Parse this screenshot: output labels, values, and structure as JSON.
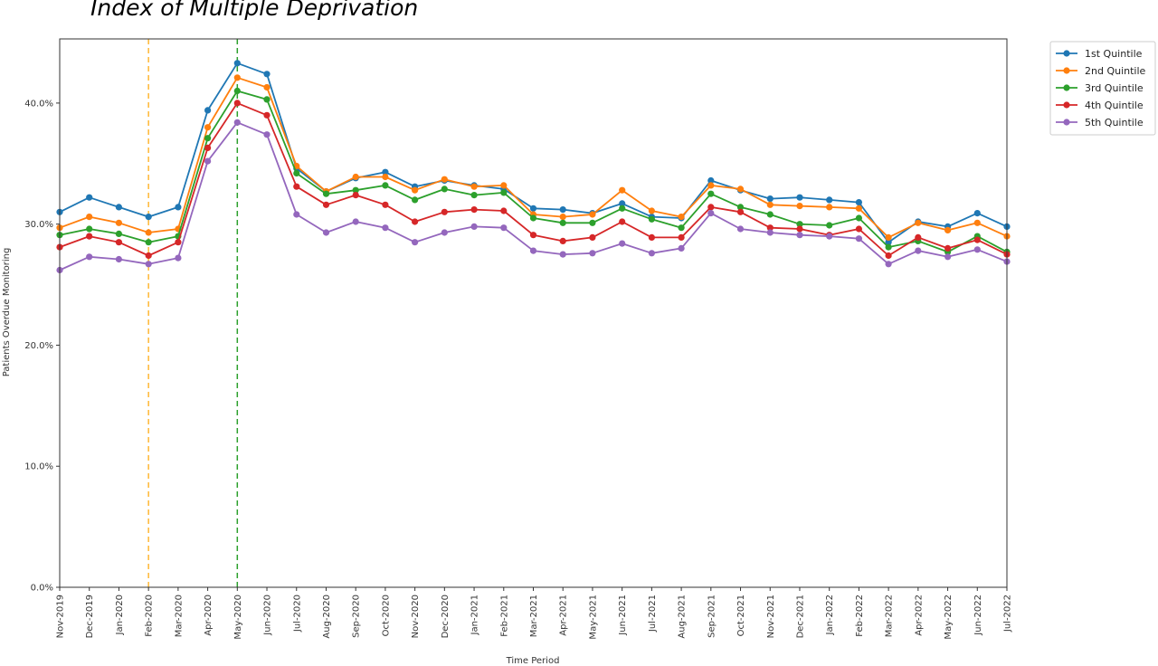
{
  "title": "Index of Multiple Deprivation",
  "chart_data": {
    "type": "line",
    "title": "Index of Multiple Deprivation",
    "xlabel": "Time Period",
    "ylabel": "Patients Overdue Monitoring",
    "ylim": [
      0,
      45.3
    ],
    "yticks": [
      "0.0%",
      "10.0%",
      "20.0%",
      "30.0%",
      "40.0%"
    ],
    "ytick_values": [
      0,
      10,
      20,
      30,
      40
    ],
    "grid": false,
    "legend_position": "top-right, outside plot",
    "categories": [
      "Nov-2019",
      "Dec-2019",
      "Jan-2020",
      "Feb-2020",
      "Mar-2020",
      "Apr-2020",
      "May-2020",
      "Jun-2020",
      "Jul-2020",
      "Aug-2020",
      "Sep-2020",
      "Oct-2020",
      "Nov-2020",
      "Dec-2020",
      "Jan-2021",
      "Feb-2021",
      "Mar-2021",
      "Apr-2021",
      "May-2021",
      "Jun-2021",
      "Jul-2021",
      "Aug-2021",
      "Sep-2021",
      "Oct-2021",
      "Nov-2021",
      "Dec-2021",
      "Jan-2022",
      "Feb-2022",
      "Mar-2022",
      "Apr-2022",
      "May-2022",
      "Jun-2022",
      "Jul-2022"
    ],
    "vlines": [
      {
        "category": "Feb-2020",
        "color": "#ffb733"
      },
      {
        "category": "May-2020",
        "color": "#2ca02c"
      }
    ],
    "series": [
      {
        "name": "1st Quintile",
        "color": "#1f77b4",
        "values": [
          31.0,
          32.2,
          31.4,
          30.6,
          31.4,
          39.4,
          43.3,
          42.4,
          34.6,
          32.7,
          33.8,
          34.3,
          33.1,
          33.6,
          33.2,
          32.9,
          31.3,
          31.2,
          30.9,
          31.7,
          30.6,
          30.5,
          33.6,
          32.8,
          32.1,
          32.2,
          32.0,
          31.8,
          28.5,
          30.2,
          29.8,
          30.9,
          29.8
        ]
      },
      {
        "name": "2nd Quintile",
        "color": "#ff7f0e",
        "values": [
          29.7,
          30.6,
          30.1,
          29.3,
          29.6,
          38.0,
          42.1,
          41.3,
          34.8,
          32.7,
          33.9,
          33.9,
          32.8,
          33.7,
          33.1,
          33.2,
          30.8,
          30.6,
          30.8,
          32.8,
          31.1,
          30.6,
          33.2,
          32.9,
          31.6,
          31.5,
          31.4,
          31.3,
          28.9,
          30.1,
          29.5,
          30.1,
          29.0
        ]
      },
      {
        "name": "3rd Quintile",
        "color": "#2ca02c",
        "values": [
          29.1,
          29.6,
          29.2,
          28.5,
          29.0,
          37.1,
          41.0,
          40.3,
          34.2,
          32.5,
          32.8,
          33.2,
          32.0,
          32.9,
          32.4,
          32.6,
          30.5,
          30.1,
          30.1,
          31.3,
          30.4,
          29.7,
          32.5,
          31.4,
          30.8,
          30.0,
          29.9,
          30.5,
          28.1,
          28.6,
          27.7,
          29.0,
          27.7
        ]
      },
      {
        "name": "4th Quintile",
        "color": "#d62728",
        "values": [
          28.1,
          29.0,
          28.5,
          27.4,
          28.5,
          36.3,
          40.0,
          39.0,
          33.1,
          31.6,
          32.4,
          31.6,
          30.2,
          31.0,
          31.2,
          31.1,
          29.1,
          28.6,
          28.9,
          30.2,
          28.9,
          28.9,
          31.4,
          31.0,
          29.7,
          29.6,
          29.1,
          29.6,
          27.4,
          28.9,
          28.0,
          28.7,
          27.5
        ]
      },
      {
        "name": "5th Quintile",
        "color": "#9467bd",
        "values": [
          26.2,
          27.3,
          27.1,
          26.7,
          27.2,
          35.2,
          38.4,
          37.4,
          30.8,
          29.3,
          30.2,
          29.7,
          28.5,
          29.3,
          29.8,
          29.7,
          27.8,
          27.5,
          27.6,
          28.4,
          27.6,
          28.0,
          30.9,
          29.6,
          29.3,
          29.1,
          29.0,
          28.8,
          26.7,
          27.8,
          27.3,
          27.9,
          26.9
        ]
      }
    ]
  }
}
